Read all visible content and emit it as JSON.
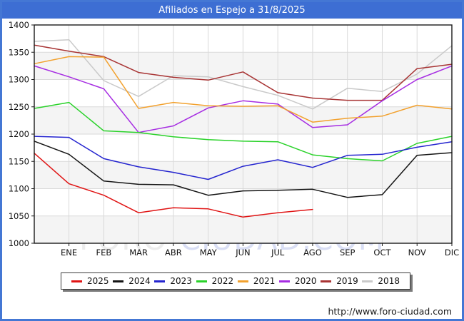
{
  "title": "Afiliados en Espejo a 31/8/2025",
  "watermark": {
    "part1": "FORO",
    "part2": "-CIUDAD.COM"
  },
  "footer_url": "http://www.foro-ciudad.com",
  "colors": {
    "frame_blue": "#4477d4",
    "titlebar_blue": "#3d6ed3",
    "plot_border": "#1a1a1a",
    "grid": "#d9d9d9",
    "band_shade": "#f4f4f4",
    "axis_text": "#111111"
  },
  "chart_data": {
    "type": "line",
    "title": "Afiliados en Espejo a 31/8/2025",
    "xlabel": "",
    "ylabel": "",
    "months": [
      "ENE",
      "FEB",
      "MAR",
      "ABR",
      "MAY",
      "JUN",
      "JUL",
      "AGO",
      "SEP",
      "OCT",
      "NOV",
      "DIC"
    ],
    "points_note": "Each series has 13 points: a start value at the left plot edge followed by the 12 month ticks; the 2025 series ends at AGO (9 points).",
    "ylim": [
      1000,
      1400
    ],
    "yticks": [
      1400,
      1350,
      1300,
      1250,
      1200,
      1150,
      1100,
      1050,
      1000
    ],
    "grid": true,
    "legend_position": "bottom",
    "series": [
      {
        "name": "2025",
        "color": "#e01414",
        "values": [
          1165,
          1109,
          1088,
          1056,
          1065,
          1063,
          1048,
          1056,
          1062
        ]
      },
      {
        "name": "2024",
        "color": "#141414",
        "values": [
          1187,
          1163,
          1114,
          1108,
          1107,
          1088,
          1096,
          1097,
          1099,
          1084,
          1089,
          1161,
          1166
        ]
      },
      {
        "name": "2023",
        "color": "#2424cf",
        "values": [
          1196,
          1194,
          1155,
          1140,
          1130,
          1117,
          1141,
          1153,
          1139,
          1161,
          1163,
          1176,
          1186
        ]
      },
      {
        "name": "2022",
        "color": "#2ad22a",
        "values": [
          1247,
          1258,
          1206,
          1203,
          1195,
          1190,
          1187,
          1186,
          1162,
          1155,
          1151,
          1183,
          1196
        ]
      },
      {
        "name": "2021",
        "color": "#f2a12e",
        "values": [
          1329,
          1342,
          1341,
          1247,
          1258,
          1252,
          1251,
          1252,
          1222,
          1229,
          1233,
          1253,
          1246
        ]
      },
      {
        "name": "2020",
        "color": "#a62ce2",
        "values": [
          1325,
          1305,
          1283,
          1203,
          1215,
          1248,
          1261,
          1255,
          1212,
          1217,
          1261,
          1300,
          1325
        ]
      },
      {
        "name": "2019",
        "color": "#a83434",
        "values": [
          1363,
          1352,
          1342,
          1313,
          1304,
          1299,
          1314,
          1276,
          1266,
          1262,
          1262,
          1320,
          1328
        ]
      },
      {
        "name": "2018",
        "color": "#c9c9c9",
        "values": [
          1370,
          1373,
          1298,
          1269,
          1307,
          1305,
          1287,
          1271,
          1246,
          1284,
          1278,
          1310,
          1362
        ]
      }
    ]
  }
}
